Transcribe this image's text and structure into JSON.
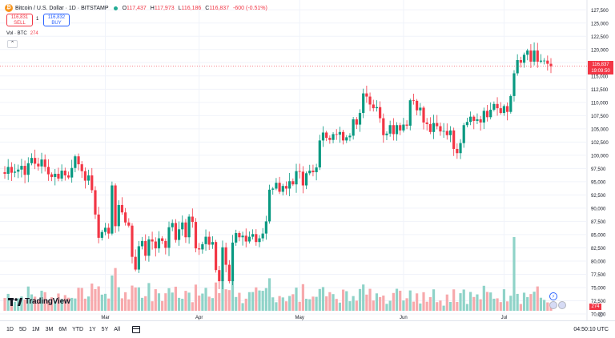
{
  "legend": {
    "coin_symbol": "₿",
    "title": "Bitcoin / U.S. Dollar · 1D · BITSTAMP",
    "open_label": "O",
    "open": "117,437",
    "high_label": "H",
    "high": "117,973",
    "low_label": "L",
    "low": "116,186",
    "close_label": "C",
    "close": "116,837",
    "change": "-600 (-0.51%)"
  },
  "trade": {
    "sell_price": "116,831",
    "sell_label": "SELL",
    "spread": "1",
    "buy_price": "116,832",
    "buy_label": "BUY"
  },
  "volume_legend": {
    "label": "Vol · BTC",
    "value": "274"
  },
  "collapse_symbol": "⌃",
  "price_axis": {
    "labels": [
      "127,500",
      "125,000",
      "122,500",
      "120,000",
      "117,500",
      "115,000",
      "112,500",
      "110,000",
      "107,500",
      "105,000",
      "102,500",
      "100,000",
      "97,500",
      "95,000",
      "92,500",
      "90,000",
      "87,500",
      "85,000",
      "82,500",
      "80,000",
      "77,500",
      "75,000",
      "72,500",
      "70,000"
    ],
    "last_price": "116,837",
    "countdown": "19:09:50",
    "volume_tag": "274"
  },
  "time_axis": {
    "labels": [
      "Mar",
      "Apr",
      "May",
      "Jun",
      "Jul"
    ]
  },
  "logo_text": "TradingView",
  "bottom_bar": {
    "timeframes": [
      "1D",
      "5D",
      "1M",
      "3M",
      "6M",
      "YTD",
      "1Y",
      "5Y",
      "All"
    ],
    "clock": "04:50:10 UTC"
  },
  "icons": {
    "coin": "bitcoin-icon",
    "live": "market-open-dot-icon",
    "logo": "tradingview-logo-icon",
    "calendar": "calendar-range-icon",
    "settings": "gear-icon",
    "events": [
      "dividend-flash-icon",
      "us-flag-event-icon",
      "us-flag-event-icon-2"
    ]
  },
  "colors": {
    "up": "#089981",
    "down": "#f23645",
    "up_vol": "#8fd3c8",
    "down_vol": "#f7a9ac",
    "grid": "#f0f3fa",
    "accent": "#2962ff"
  },
  "chart_data": {
    "type": "candlestick",
    "title": "Bitcoin / U.S. Dollar · 1D · BITSTAMP",
    "xlabel": "",
    "ylabel": "",
    "ylim": [
      70000,
      128750
    ],
    "grid": true,
    "x_ticks": [
      {
        "label": "Mar",
        "index": 30
      },
      {
        "label": "Apr",
        "index": 58
      },
      {
        "label": "May",
        "index": 88
      },
      {
        "label": "Jun",
        "index": 119
      },
      {
        "label": "Jul",
        "index": 149
      }
    ],
    "close": [
      96500,
      97800,
      96700,
      96900,
      97300,
      98000,
      96300,
      98500,
      99500,
      98400,
      97900,
      99200,
      97800,
      96400,
      95900,
      96500,
      95600,
      97100,
      96200,
      95800,
      97600,
      99800,
      98300,
      97000,
      95200,
      96200,
      93400,
      88800,
      84400,
      85500,
      86300,
      85200,
      94300,
      86600,
      90600,
      89200,
      87300,
      86700,
      80800,
      78400,
      82800,
      83800,
      81000,
      84100,
      83700,
      82400,
      84300,
      83800,
      82500,
      86400,
      87200,
      84000,
      86000,
      87300,
      84500,
      88400,
      87400,
      82400,
      82200,
      83200,
      84600,
      83100,
      83600,
      78300,
      76200,
      82600,
      79300,
      76200,
      83500,
      85300,
      84500,
      84800,
      83700,
      84600,
      85100,
      83600,
      84300,
      85200,
      87500,
      93500,
      93700,
      94800,
      93100,
      94200,
      93700,
      95100,
      94500,
      97000,
      96900,
      94300,
      96600,
      97100,
      96800,
      97700,
      102800,
      104300,
      103300,
      102900,
      104000,
      103900,
      104400,
      102800,
      103400,
      103700,
      106800,
      105800,
      108000,
      111700,
      111100,
      109600,
      108900,
      109100,
      107000,
      103800,
      104100,
      105700,
      104000,
      105700,
      104700,
      105800,
      105600,
      110400,
      110300,
      108500,
      109000,
      106200,
      105900,
      104400,
      106100,
      105500,
      104500,
      104600,
      103800,
      104700,
      101200,
      100400,
      102300,
      105700,
      106300,
      107300,
      106500,
      106800,
      106200,
      108400,
      107200,
      108600,
      109700,
      108900,
      108000,
      109300,
      108200,
      111200,
      115500,
      118000,
      117500,
      119000,
      119800,
      117700,
      119800,
      117700,
      117900,
      117900,
      117300,
      116837
    ],
    "open_seed": 96800,
    "volume_note": "daily BTC volume bars follow close direction",
    "volume_latest": 274
  }
}
